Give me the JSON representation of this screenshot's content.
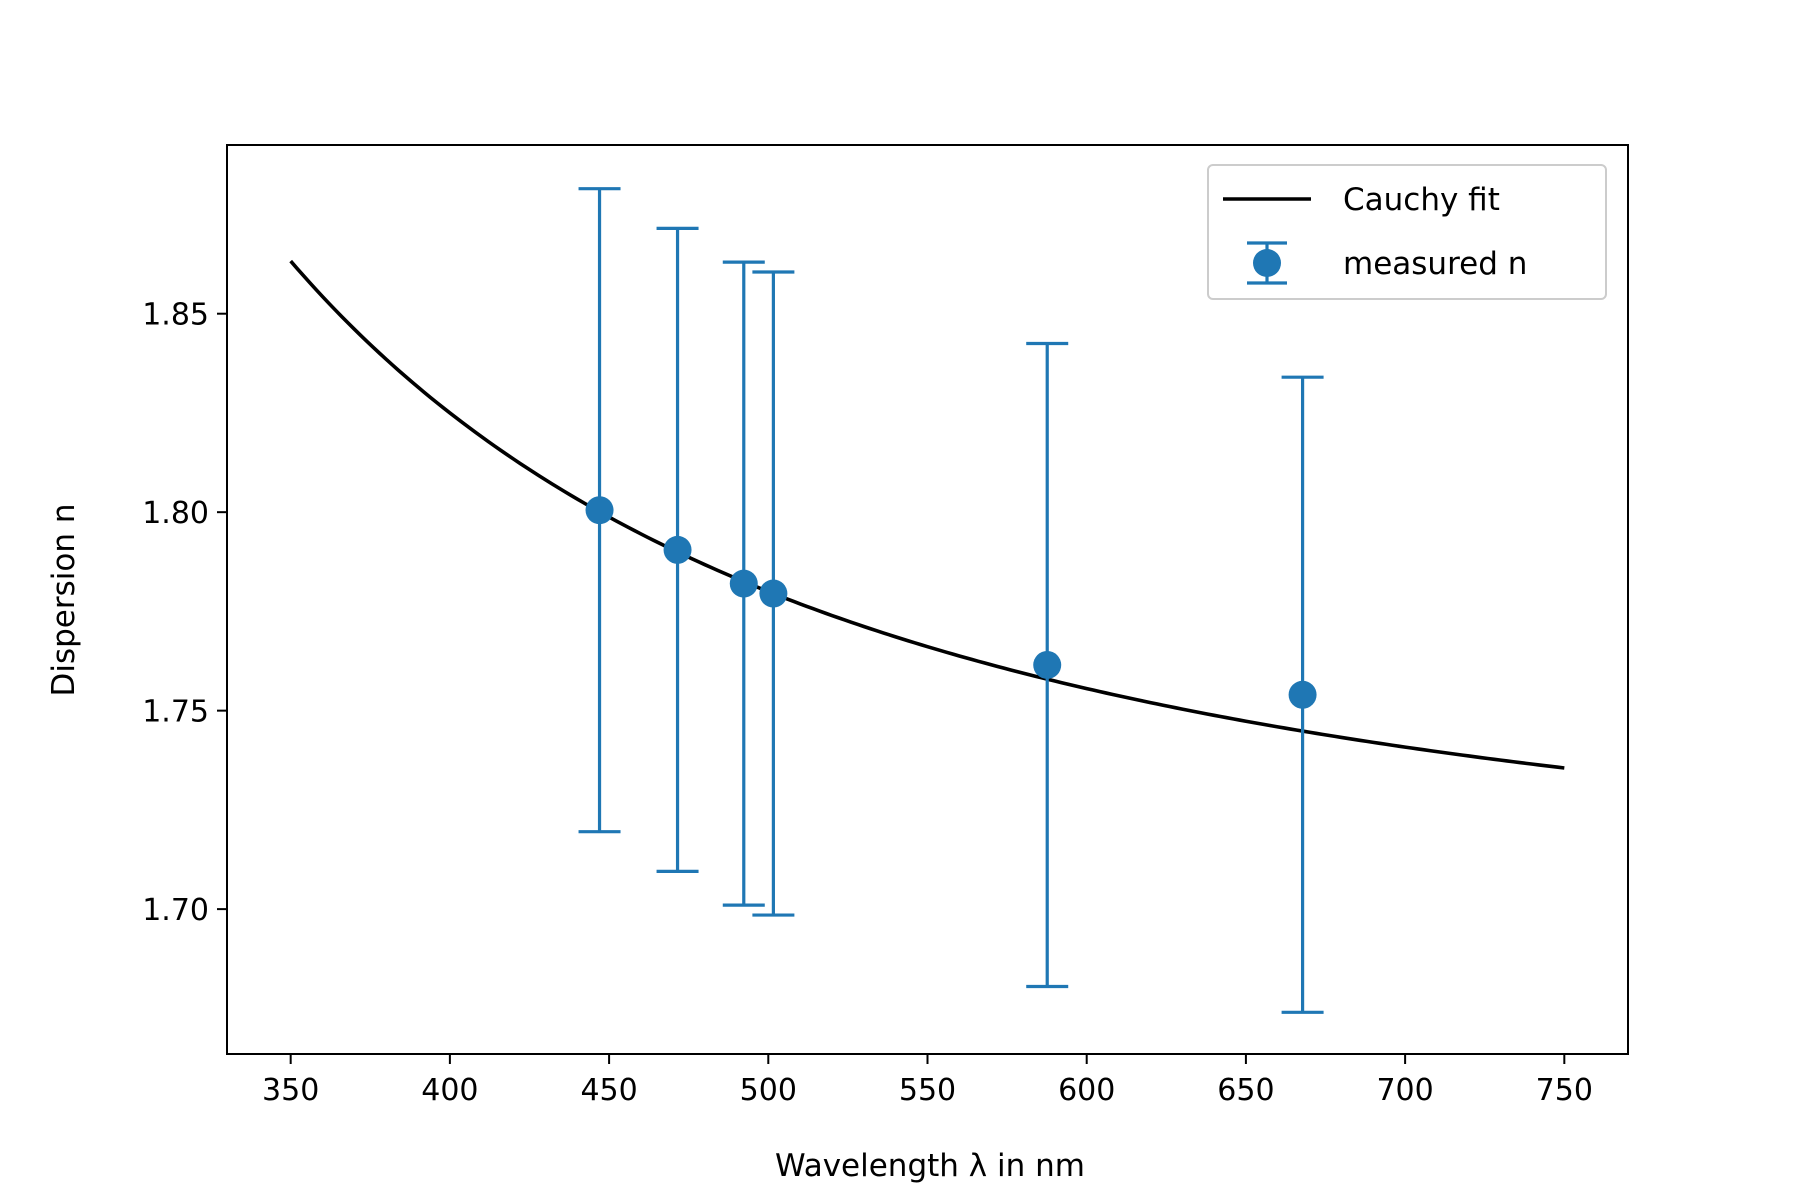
{
  "chart_data": {
    "type": "scatter",
    "xlabel": "Wavelength λ in nm",
    "ylabel": "Dispersion n",
    "xlim": [
      330,
      770
    ],
    "ylim": [
      1.6635,
      1.8925
    ],
    "xticks": [
      350,
      400,
      450,
      500,
      550,
      600,
      650,
      700,
      750
    ],
    "yticks": [
      1.7,
      1.75,
      1.8,
      1.85
    ],
    "legend_position": "upper-right",
    "grid": false,
    "series": [
      {
        "name": "Cauchy fit",
        "kind": "line",
        "color": "#000000",
        "cauchy": {
          "A": 1.7,
          "B": 20000
        },
        "x_range": [
          350,
          750
        ]
      },
      {
        "name": "measured n",
        "kind": "errorbar",
        "color": "#1f77b4",
        "x": [
          447,
          471.5,
          492.3,
          501.6,
          587.6,
          667.8
        ],
        "y": [
          1.8005,
          1.7905,
          1.782,
          1.7795,
          1.7615,
          1.754
        ],
        "yerr": [
          0.081,
          0.081,
          0.081,
          0.081,
          0.081,
          0.08
        ]
      }
    ]
  }
}
